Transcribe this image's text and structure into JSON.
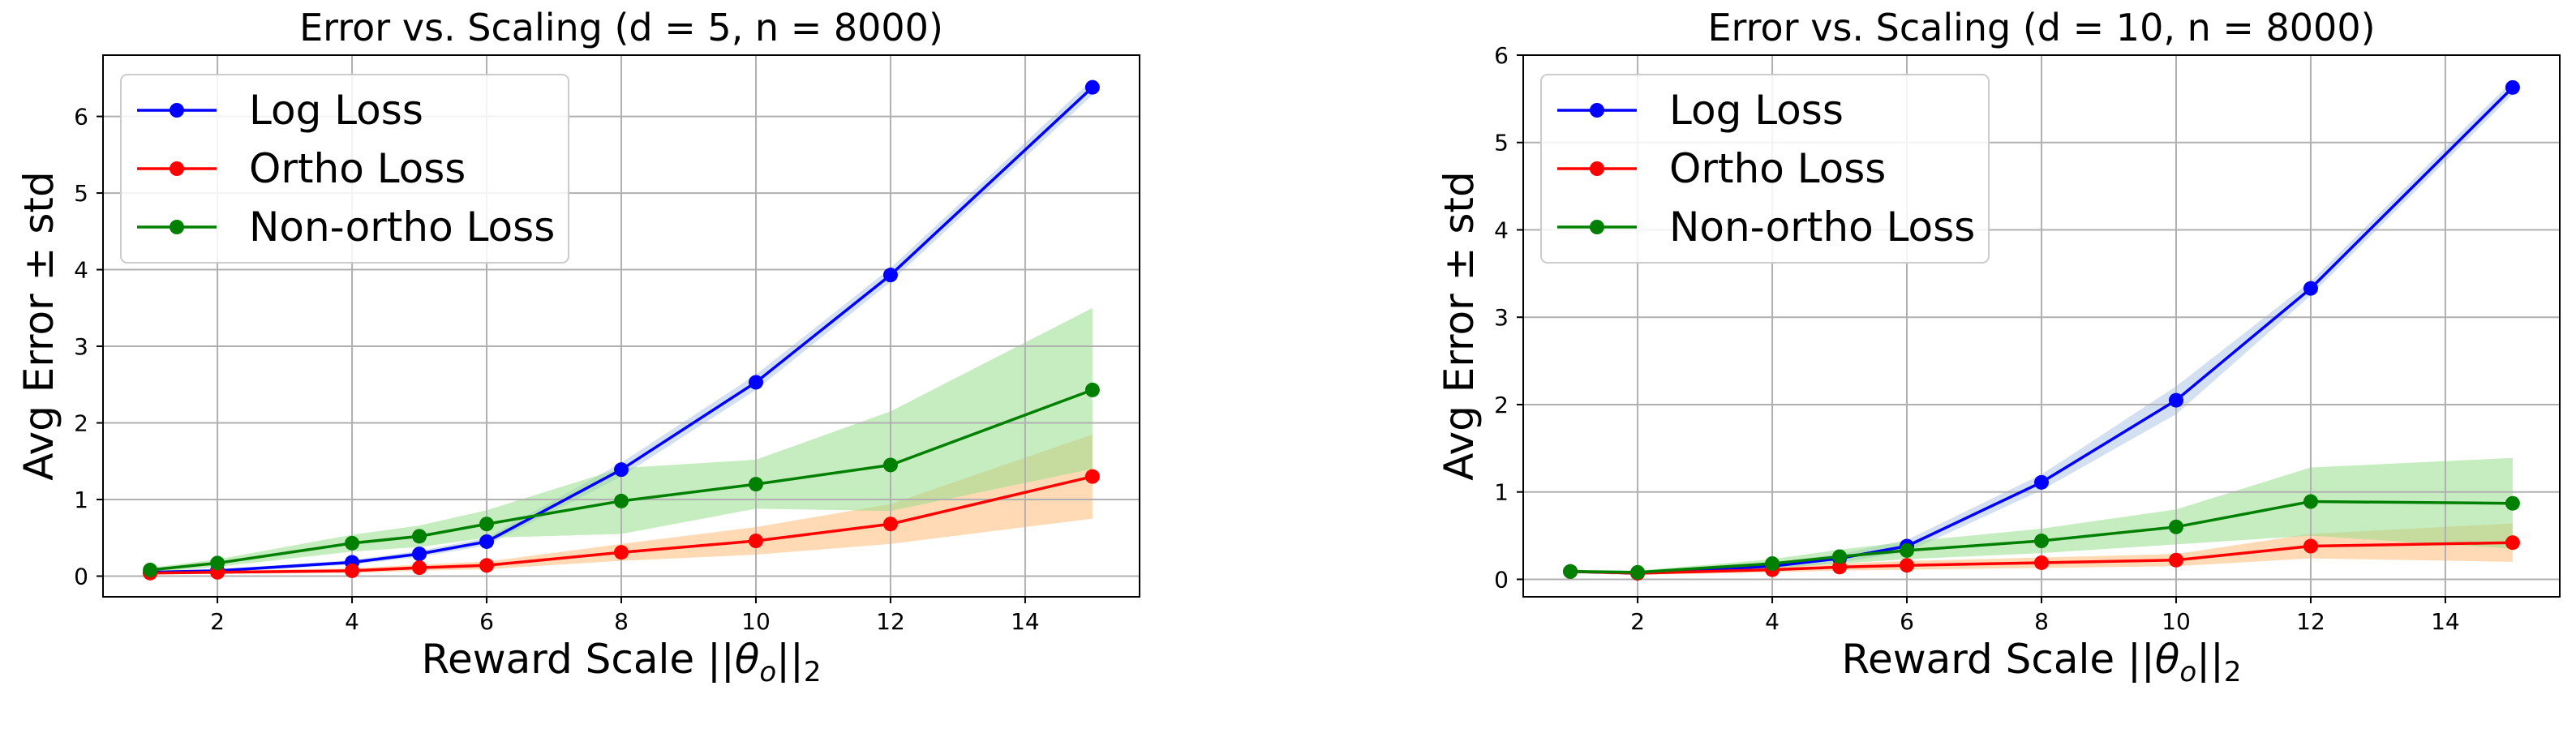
{
  "chart_data": [
    {
      "type": "line",
      "title": "Error vs. Scaling (d = 5, n = 8000)",
      "xlabel_prefix": "Reward Scale ||",
      "xlabel_theta": "θ",
      "xlabel_sub_o": "o",
      "xlabel_bars": "||",
      "xlabel_sub_2": "2",
      "ylabel": "Avg Error ± std",
      "xlim": [
        0.3,
        15.7
      ],
      "ylim": [
        -0.27,
        6.8
      ],
      "xticks": [
        2,
        4,
        6,
        8,
        10,
        12,
        14
      ],
      "yticks": [
        0,
        1,
        2,
        3,
        4,
        5,
        6
      ],
      "grid": true,
      "legend_position": "top-left",
      "x": [
        1,
        2,
        4,
        5,
        6,
        8,
        10,
        12,
        15
      ],
      "series": [
        {
          "name": "Log Loss",
          "color": "#0000ff",
          "band_color": "#aec7e8",
          "values": [
            0.05,
            0.07,
            0.18,
            0.29,
            0.45,
            1.39,
            2.53,
            3.93,
            6.38
          ],
          "lower": [
            0.03,
            0.05,
            0.15,
            0.25,
            0.4,
            1.3,
            2.43,
            3.84,
            6.28
          ],
          "upper": [
            0.07,
            0.09,
            0.21,
            0.33,
            0.5,
            1.48,
            2.63,
            4.02,
            6.48
          ]
        },
        {
          "name": "Ortho Loss",
          "color": "#ff0000",
          "band_color": "#ffbb78",
          "values": [
            0.04,
            0.05,
            0.07,
            0.11,
            0.14,
            0.31,
            0.46,
            0.68,
            1.3
          ],
          "lower": [
            0.02,
            0.03,
            0.04,
            0.07,
            0.09,
            0.2,
            0.28,
            0.42,
            0.75
          ],
          "upper": [
            0.06,
            0.07,
            0.1,
            0.15,
            0.19,
            0.42,
            0.64,
            0.94,
            1.85
          ]
        },
        {
          "name": "Non-ortho Loss",
          "color": "#008000",
          "band_color": "#98df8a",
          "values": [
            0.08,
            0.17,
            0.43,
            0.52,
            0.68,
            0.98,
            1.2,
            1.45,
            2.43
          ],
          "lower": [
            0.05,
            0.12,
            0.32,
            0.38,
            0.5,
            0.55,
            0.88,
            0.85,
            1.4
          ],
          "upper": [
            0.11,
            0.22,
            0.54,
            0.66,
            0.86,
            1.41,
            1.52,
            2.15,
            3.5
          ]
        }
      ]
    },
    {
      "type": "line",
      "title": "Error vs. Scaling (d = 10, n = 8000)",
      "xlabel_prefix": "Reward Scale ||",
      "xlabel_theta": "θ",
      "xlabel_sub_o": "o",
      "xlabel_bars": "||",
      "xlabel_sub_2": "2",
      "ylabel": "Avg Error ± std",
      "xlim": [
        0.3,
        15.7
      ],
      "ylim": [
        -0.2,
        6.0
      ],
      "xticks": [
        2,
        4,
        6,
        8,
        10,
        12,
        14
      ],
      "yticks": [
        0,
        1,
        2,
        3,
        4,
        5,
        6
      ],
      "grid": true,
      "legend_position": "top-left",
      "x": [
        1,
        2,
        4,
        5,
        6,
        8,
        10,
        12,
        15
      ],
      "series": [
        {
          "name": "Log Loss",
          "color": "#0000ff",
          "band_color": "#aec7e8",
          "values": [
            0.09,
            0.07,
            0.15,
            0.24,
            0.38,
            1.11,
            2.05,
            3.33,
            5.63
          ],
          "lower": [
            0.07,
            0.05,
            0.11,
            0.19,
            0.31,
            1.02,
            1.89,
            3.25,
            5.55
          ],
          "upper": [
            0.11,
            0.09,
            0.19,
            0.29,
            0.45,
            1.2,
            2.21,
            3.41,
            5.71
          ]
        },
        {
          "name": "Ortho Loss",
          "color": "#ff0000",
          "band_color": "#ffbb78",
          "values": [
            0.09,
            0.07,
            0.11,
            0.14,
            0.16,
            0.19,
            0.22,
            0.38,
            0.42
          ],
          "lower": [
            0.07,
            0.05,
            0.08,
            0.1,
            0.11,
            0.13,
            0.15,
            0.24,
            0.2
          ],
          "upper": [
            0.11,
            0.09,
            0.14,
            0.18,
            0.21,
            0.25,
            0.29,
            0.52,
            0.64
          ]
        },
        {
          "name": "Non-ortho Loss",
          "color": "#008000",
          "band_color": "#98df8a",
          "values": [
            0.09,
            0.08,
            0.18,
            0.26,
            0.33,
            0.44,
            0.6,
            0.89,
            0.87
          ],
          "lower": [
            0.07,
            0.06,
            0.13,
            0.18,
            0.23,
            0.3,
            0.4,
            0.5,
            0.35
          ],
          "upper": [
            0.11,
            0.1,
            0.23,
            0.34,
            0.43,
            0.58,
            0.8,
            1.28,
            1.39
          ]
        }
      ]
    }
  ]
}
